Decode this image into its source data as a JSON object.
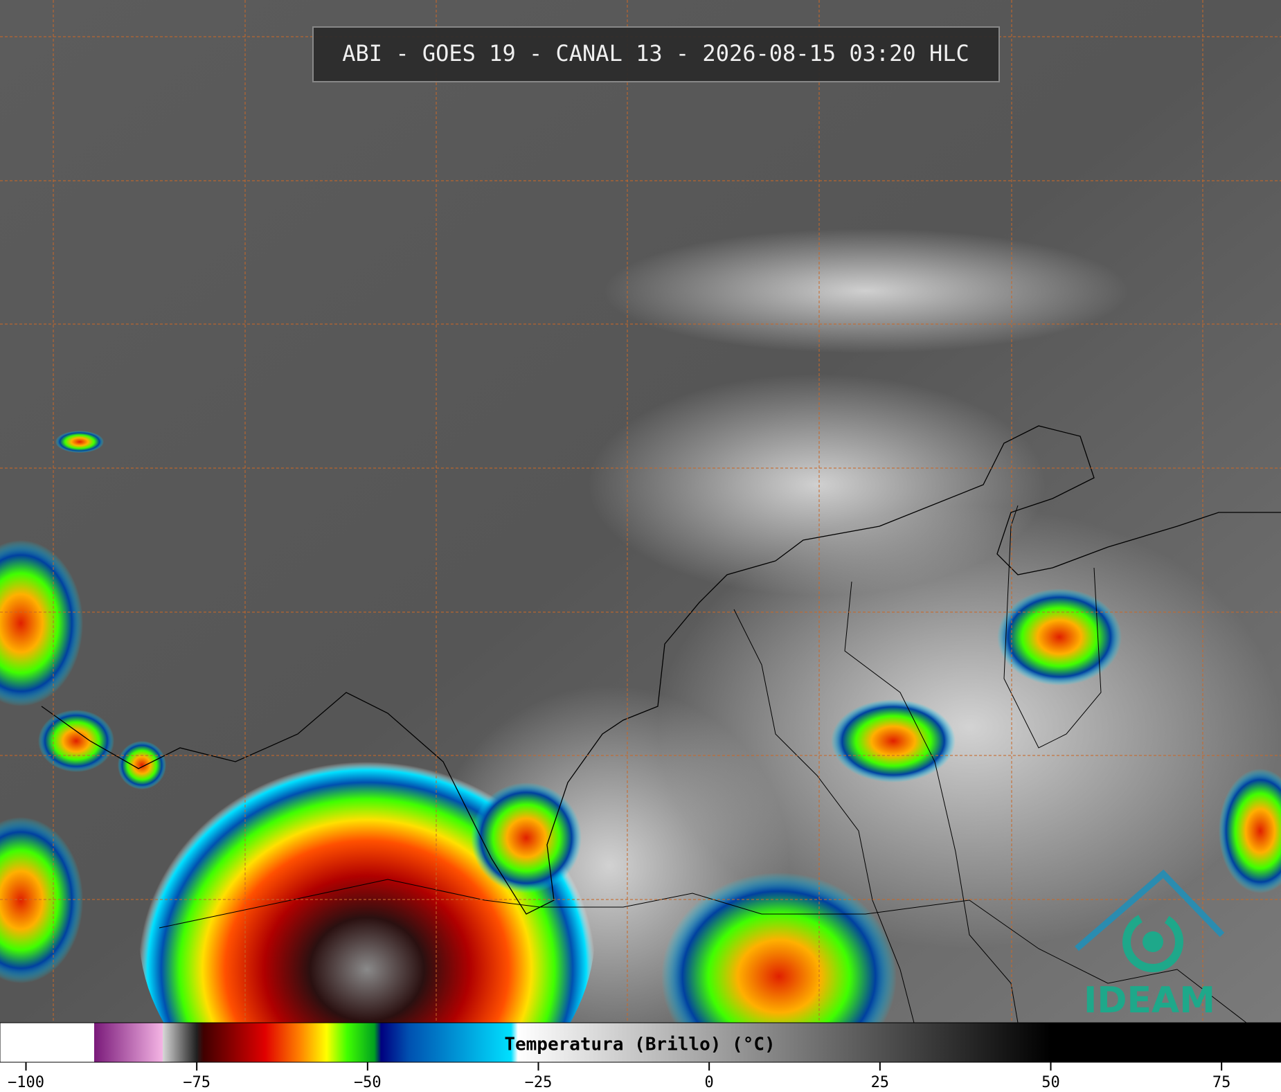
{
  "header": {
    "title": "ABI - GOES 19 - CANAL 13 - 2026-08-15 03:20 HLC"
  },
  "logo": {
    "text": "IDEAM"
  },
  "colorbar": {
    "label": "Temperatura (Brillo) (°C)",
    "clim": [
      -103.8,
      83.7
    ],
    "ticks": [
      {
        "value": -100,
        "label": "−100"
      },
      {
        "value": -75,
        "label": "−75"
      },
      {
        "value": -50,
        "label": "−50"
      },
      {
        "value": -25,
        "label": "−25"
      },
      0,
      25,
      50,
      75
    ],
    "stops": [
      {
        "value": -103.8,
        "color": "#ffffff"
      },
      {
        "value": -90,
        "color": "#ffffff"
      },
      {
        "value": -90,
        "color": "#7a1a7a"
      },
      {
        "value": -80,
        "color": "#f4b4e4"
      },
      {
        "value": -80,
        "color": "#d8d8d8"
      },
      {
        "value": -75,
        "color": "#202020"
      },
      {
        "value": -74,
        "color": "#400000"
      },
      {
        "value": -65,
        "color": "#e00000"
      },
      {
        "value": -60,
        "color": "#ff8000"
      },
      {
        "value": -56,
        "color": "#ffff00"
      },
      {
        "value": -53,
        "color": "#40ff00"
      },
      {
        "value": -49,
        "color": "#00a020"
      },
      {
        "value": -48,
        "color": "#000080"
      },
      {
        "value": -44,
        "color": "#0050b0"
      },
      {
        "value": -29,
        "color": "#00e0ff"
      },
      {
        "value": -28,
        "color": "#ffffff"
      },
      {
        "value": 50,
        "color": "#000000"
      },
      {
        "value": 83.7,
        "color": "#000000"
      }
    ]
  }
}
